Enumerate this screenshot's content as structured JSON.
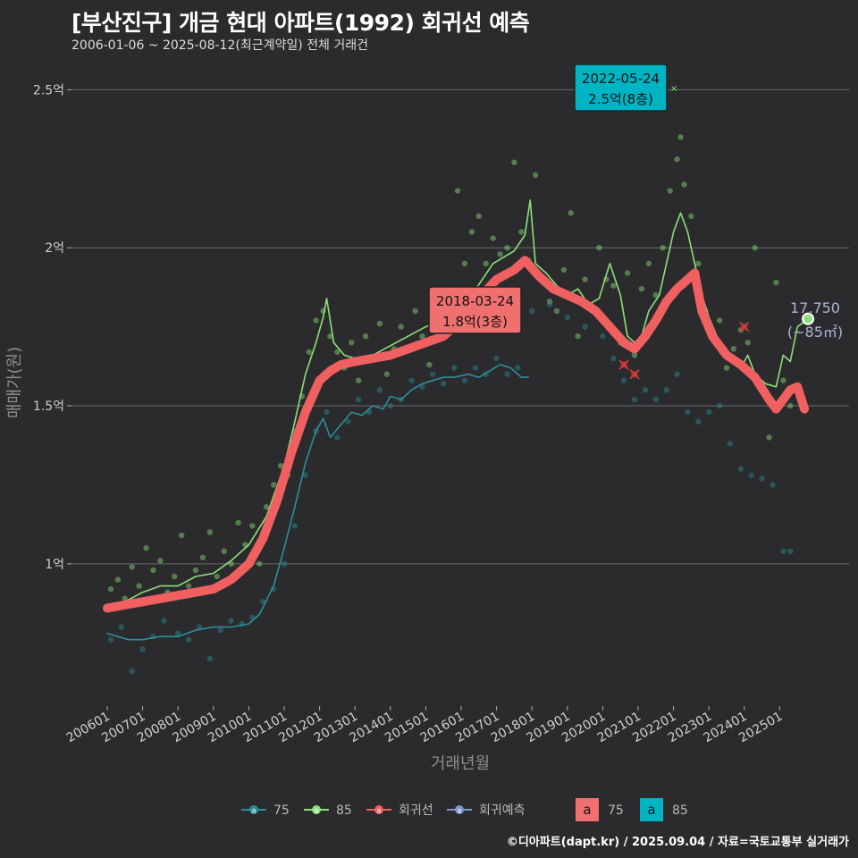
{
  "title": "[부산진구] 개금 현대 아파트(1992) 회귀선 예측",
  "subtitle": "2006-01-06 ~ 2025-08-12(최근계약일) 전체 거래건",
  "caption": "©디아파트(dapt.kr) / 2025.09.04 / 자료=국토교통부 실거래가",
  "colors": {
    "background": "#2b2b2d",
    "series_75": "#2a8f98",
    "series_85": "#8ce07a",
    "regression": "#f06060",
    "forecast": "#7f93c7",
    "label_75_fill": "#f07070",
    "label_85_fill": "#00b4c4"
  },
  "chart_data": {
    "type": "line",
    "xlabel": "거래년월",
    "ylabel": "매매가(원)",
    "x_range": [
      2006.0,
      2025.95
    ],
    "ylim": [
      0.55,
      2.6
    ],
    "y_ticks": [
      1.0,
      1.5,
      2.0,
      2.5
    ],
    "y_tick_labels": [
      "1억",
      "1.5억",
      "2억",
      "2.5억"
    ],
    "x_tick_labels": [
      "200601",
      "200701",
      "200801",
      "200901",
      "201001",
      "201101",
      "201201",
      "201301",
      "201401",
      "201501",
      "201601",
      "201701",
      "201801",
      "201901",
      "202001",
      "202101",
      "202201",
      "202301",
      "202401",
      "202501"
    ],
    "series": [
      {
        "name": "75",
        "points": [
          [
            2006.0,
            0.78
          ],
          [
            2006.3,
            0.77
          ],
          [
            2006.6,
            0.76
          ],
          [
            2007.0,
            0.76
          ],
          [
            2007.5,
            0.77
          ],
          [
            2008.0,
            0.77
          ],
          [
            2008.5,
            0.79
          ],
          [
            2009.0,
            0.8
          ],
          [
            2009.5,
            0.8
          ],
          [
            2010.0,
            0.81
          ],
          [
            2010.3,
            0.84
          ],
          [
            2010.7,
            0.93
          ],
          [
            2011.0,
            1.05
          ],
          [
            2011.3,
            1.18
          ],
          [
            2011.6,
            1.32
          ],
          [
            2011.9,
            1.42
          ],
          [
            2012.1,
            1.46
          ],
          [
            2012.3,
            1.4
          ],
          [
            2012.6,
            1.44
          ],
          [
            2012.9,
            1.48
          ],
          [
            2013.2,
            1.47
          ],
          [
            2013.5,
            1.5
          ],
          [
            2013.8,
            1.49
          ],
          [
            2014.0,
            1.53
          ],
          [
            2014.3,
            1.52
          ],
          [
            2014.6,
            1.55
          ],
          [
            2014.9,
            1.57
          ],
          [
            2015.2,
            1.58
          ],
          [
            2015.5,
            1.59
          ],
          [
            2015.8,
            1.59
          ],
          [
            2016.2,
            1.6
          ],
          [
            2016.5,
            1.59
          ],
          [
            2016.8,
            1.61
          ],
          [
            2017.1,
            1.63
          ],
          [
            2017.4,
            1.62
          ],
          [
            2017.7,
            1.59
          ],
          [
            2017.9,
            1.59
          ]
        ]
      },
      {
        "name": "85",
        "points": [
          [
            2006.0,
            0.87
          ],
          [
            2006.5,
            0.88
          ],
          [
            2007.0,
            0.91
          ],
          [
            2007.5,
            0.93
          ],
          [
            2008.0,
            0.93
          ],
          [
            2008.5,
            0.96
          ],
          [
            2009.0,
            0.97
          ],
          [
            2009.5,
            1.01
          ],
          [
            2010.0,
            1.06
          ],
          [
            2010.5,
            1.15
          ],
          [
            2011.0,
            1.31
          ],
          [
            2011.3,
            1.45
          ],
          [
            2011.6,
            1.6
          ],
          [
            2011.9,
            1.7
          ],
          [
            2012.1,
            1.78
          ],
          [
            2012.2,
            1.84
          ],
          [
            2012.4,
            1.7
          ],
          [
            2012.7,
            1.66
          ],
          [
            2013.0,
            1.65
          ],
          [
            2013.5,
            1.66
          ],
          [
            2014.0,
            1.69
          ],
          [
            2014.5,
            1.72
          ],
          [
            2015.0,
            1.75
          ],
          [
            2015.5,
            1.77
          ],
          [
            2016.0,
            1.8
          ],
          [
            2016.3,
            1.85
          ],
          [
            2016.6,
            1.9
          ],
          [
            2016.9,
            1.95
          ],
          [
            2017.2,
            1.97
          ],
          [
            2017.5,
            1.99
          ],
          [
            2017.8,
            2.04
          ],
          [
            2017.95,
            2.15
          ],
          [
            2018.1,
            1.95
          ],
          [
            2018.4,
            1.92
          ],
          [
            2018.7,
            1.88
          ],
          [
            2019.0,
            1.85
          ],
          [
            2019.3,
            1.87
          ],
          [
            2019.6,
            1.82
          ],
          [
            2019.9,
            1.84
          ],
          [
            2020.2,
            1.95
          ],
          [
            2020.5,
            1.85
          ],
          [
            2020.7,
            1.72
          ],
          [
            2020.9,
            1.7
          ],
          [
            2021.1,
            1.72
          ],
          [
            2021.3,
            1.8
          ],
          [
            2021.6,
            1.85
          ],
          [
            2021.8,
            1.95
          ],
          [
            2022.0,
            2.05
          ],
          [
            2022.2,
            2.11
          ],
          [
            2022.4,
            2.05
          ],
          [
            2022.6,
            1.95
          ],
          [
            2022.8,
            1.85
          ],
          [
            2023.0,
            1.78
          ],
          [
            2023.3,
            1.7
          ],
          [
            2023.6,
            1.65
          ],
          [
            2023.9,
            1.62
          ],
          [
            2024.1,
            1.66
          ],
          [
            2024.3,
            1.6
          ],
          [
            2024.6,
            1.57
          ],
          [
            2024.9,
            1.56
          ],
          [
            2025.1,
            1.66
          ],
          [
            2025.3,
            1.64
          ],
          [
            2025.5,
            1.75
          ],
          [
            2025.8,
            1.775
          ]
        ]
      },
      {
        "name": "회귀선",
        "points": [
          [
            2006.0,
            0.86
          ],
          [
            2006.5,
            0.87
          ],
          [
            2007.0,
            0.88
          ],
          [
            2007.5,
            0.89
          ],
          [
            2008.0,
            0.9
          ],
          [
            2008.5,
            0.91
          ],
          [
            2009.0,
            0.92
          ],
          [
            2009.5,
            0.95
          ],
          [
            2010.0,
            1.0
          ],
          [
            2010.4,
            1.08
          ],
          [
            2010.8,
            1.2
          ],
          [
            2011.2,
            1.35
          ],
          [
            2011.6,
            1.48
          ],
          [
            2012.0,
            1.58
          ],
          [
            2012.3,
            1.61
          ],
          [
            2012.6,
            1.63
          ],
          [
            2013.0,
            1.64
          ],
          [
            2013.5,
            1.65
          ],
          [
            2014.0,
            1.66
          ],
          [
            2014.5,
            1.68
          ],
          [
            2015.0,
            1.7
          ],
          [
            2015.5,
            1.72
          ],
          [
            2016.0,
            1.77
          ],
          [
            2016.5,
            1.84
          ],
          [
            2017.0,
            1.9
          ],
          [
            2017.5,
            1.93
          ],
          [
            2017.8,
            1.96
          ],
          [
            2018.2,
            1.91
          ],
          [
            2018.6,
            1.87
          ],
          [
            2019.0,
            1.85
          ],
          [
            2019.4,
            1.83
          ],
          [
            2019.8,
            1.8
          ],
          [
            2020.2,
            1.75
          ],
          [
            2020.6,
            1.7
          ],
          [
            2020.9,
            1.68
          ],
          [
            2021.2,
            1.72
          ],
          [
            2021.5,
            1.77
          ],
          [
            2021.8,
            1.83
          ],
          [
            2022.1,
            1.87
          ],
          [
            2022.4,
            1.9
          ],
          [
            2022.6,
            1.92
          ],
          [
            2022.8,
            1.8
          ],
          [
            2023.1,
            1.72
          ],
          [
            2023.5,
            1.66
          ],
          [
            2023.9,
            1.63
          ],
          [
            2024.3,
            1.59
          ],
          [
            2024.7,
            1.52
          ],
          [
            2024.9,
            1.49
          ],
          [
            2025.1,
            1.52
          ],
          [
            2025.3,
            1.55
          ],
          [
            2025.5,
            1.56
          ],
          [
            2025.7,
            1.49
          ]
        ]
      }
    ],
    "scatter_85": [
      [
        2006.1,
        0.92
      ],
      [
        2006.3,
        0.95
      ],
      [
        2006.5,
        0.89
      ],
      [
        2006.7,
        0.99
      ],
      [
        2006.9,
        0.93
      ],
      [
        2007.1,
        1.05
      ],
      [
        2007.3,
        0.98
      ],
      [
        2007.5,
        1.01
      ],
      [
        2007.7,
        0.91
      ],
      [
        2007.9,
        0.96
      ],
      [
        2008.1,
        1.09
      ],
      [
        2008.3,
        0.93
      ],
      [
        2008.5,
        0.98
      ],
      [
        2008.7,
        1.02
      ],
      [
        2008.9,
        1.1
      ],
      [
        2009.1,
        0.96
      ],
      [
        2009.3,
        1.04
      ],
      [
        2009.5,
        1.0
      ],
      [
        2009.7,
        1.13
      ],
      [
        2009.9,
        1.06
      ],
      [
        2010.1,
        1.12
      ],
      [
        2010.3,
        1.0
      ],
      [
        2010.5,
        1.18
      ],
      [
        2010.7,
        1.25
      ],
      [
        2010.9,
        1.31
      ],
      [
        2011.1,
        1.28
      ],
      [
        2011.3,
        1.42
      ],
      [
        2011.5,
        1.53
      ],
      [
        2011.7,
        1.67
      ],
      [
        2011.9,
        1.77
      ],
      [
        2012.1,
        1.8
      ],
      [
        2012.3,
        1.72
      ],
      [
        2012.5,
        1.67
      ],
      [
        2012.7,
        1.62
      ],
      [
        2012.9,
        1.7
      ],
      [
        2013.1,
        1.58
      ],
      [
        2013.3,
        1.72
      ],
      [
        2013.5,
        1.65
      ],
      [
        2013.7,
        1.76
      ],
      [
        2013.9,
        1.6
      ],
      [
        2014.1,
        1.68
      ],
      [
        2014.3,
        1.75
      ],
      [
        2014.5,
        1.68
      ],
      [
        2014.7,
        1.8
      ],
      [
        2014.9,
        1.72
      ],
      [
        2015.1,
        1.63
      ],
      [
        2015.3,
        1.78
      ],
      [
        2015.5,
        1.74
      ],
      [
        2015.7,
        1.85
      ],
      [
        2015.9,
        2.18
      ],
      [
        2016.1,
        1.95
      ],
      [
        2016.3,
        2.05
      ],
      [
        2016.5,
        2.1
      ],
      [
        2016.7,
        1.95
      ],
      [
        2016.9,
        2.03
      ],
      [
        2017.1,
        1.98
      ],
      [
        2017.3,
        2.0
      ],
      [
        2017.5,
        2.27
      ],
      [
        2017.7,
        2.05
      ],
      [
        2017.9,
        1.96
      ],
      [
        2018.1,
        2.23
      ],
      [
        2018.3,
        1.9
      ],
      [
        2018.5,
        1.83
      ],
      [
        2018.7,
        1.8
      ],
      [
        2018.9,
        1.93
      ],
      [
        2019.1,
        2.11
      ],
      [
        2019.3,
        1.72
      ],
      [
        2019.5,
        1.9
      ],
      [
        2019.7,
        1.8
      ],
      [
        2019.9,
        2.0
      ],
      [
        2020.1,
        1.9
      ],
      [
        2020.3,
        1.88
      ],
      [
        2020.5,
        1.7
      ],
      [
        2020.7,
        1.92
      ],
      [
        2020.9,
        1.66
      ],
      [
        2021.1,
        1.87
      ],
      [
        2021.3,
        1.95
      ],
      [
        2021.5,
        1.85
      ],
      [
        2021.7,
        2.0
      ],
      [
        2021.9,
        2.18
      ],
      [
        2022.1,
        2.28
      ],
      [
        2022.2,
        2.35
      ],
      [
        2022.3,
        2.2
      ],
      [
        2022.5,
        2.1
      ],
      [
        2022.7,
        1.95
      ],
      [
        2022.9,
        1.8
      ],
      [
        2023.1,
        1.72
      ],
      [
        2023.3,
        1.77
      ],
      [
        2023.5,
        1.62
      ],
      [
        2023.7,
        1.68
      ],
      [
        2023.9,
        1.74
      ],
      [
        2024.1,
        1.7
      ],
      [
        2024.3,
        2.0
      ],
      [
        2024.5,
        1.55
      ],
      [
        2024.7,
        1.4
      ],
      [
        2024.9,
        1.89
      ],
      [
        2025.1,
        1.58
      ],
      [
        2025.3,
        1.5
      ]
    ],
    "scatter_75": [
      [
        2006.1,
        0.76
      ],
      [
        2006.4,
        0.8
      ],
      [
        2006.7,
        0.66
      ],
      [
        2007.0,
        0.73
      ],
      [
        2007.3,
        0.77
      ],
      [
        2007.6,
        0.82
      ],
      [
        2008.0,
        0.78
      ],
      [
        2008.3,
        0.76
      ],
      [
        2008.6,
        0.8
      ],
      [
        2008.9,
        0.7
      ],
      [
        2009.2,
        0.79
      ],
      [
        2009.5,
        0.82
      ],
      [
        2009.8,
        0.81
      ],
      [
        2010.1,
        0.83
      ],
      [
        2010.4,
        0.88
      ],
      [
        2010.7,
        0.92
      ],
      [
        2011.0,
        1.0
      ],
      [
        2011.3,
        1.12
      ],
      [
        2011.6,
        1.28
      ],
      [
        2011.9,
        1.42
      ],
      [
        2012.2,
        1.48
      ],
      [
        2012.5,
        1.4
      ],
      [
        2012.8,
        1.45
      ],
      [
        2013.1,
        1.52
      ],
      [
        2013.4,
        1.48
      ],
      [
        2013.7,
        1.55
      ],
      [
        2014.0,
        1.5
      ],
      [
        2014.3,
        1.52
      ],
      [
        2014.6,
        1.58
      ],
      [
        2014.9,
        1.56
      ],
      [
        2015.2,
        1.6
      ],
      [
        2015.5,
        1.57
      ],
      [
        2015.8,
        1.62
      ],
      [
        2016.1,
        1.58
      ],
      [
        2016.4,
        1.62
      ],
      [
        2016.7,
        1.6
      ],
      [
        2017.0,
        1.65
      ],
      [
        2017.3,
        1.6
      ],
      [
        2017.6,
        1.62
      ],
      [
        2018.0,
        1.8
      ],
      [
        2018.5,
        1.82
      ],
      [
        2019.0,
        1.78
      ],
      [
        2019.5,
        1.75
      ],
      [
        2020.0,
        1.72
      ],
      [
        2020.3,
        1.65
      ],
      [
        2020.6,
        1.58
      ],
      [
        2020.9,
        1.52
      ],
      [
        2021.2,
        1.55
      ],
      [
        2021.5,
        1.52
      ],
      [
        2021.8,
        1.55
      ],
      [
        2022.1,
        1.6
      ],
      [
        2022.4,
        1.48
      ],
      [
        2022.7,
        1.45
      ],
      [
        2023.0,
        1.48
      ],
      [
        2023.3,
        1.5
      ],
      [
        2023.6,
        1.38
      ],
      [
        2023.9,
        1.3
      ],
      [
        2024.2,
        1.28
      ],
      [
        2024.5,
        1.27
      ],
      [
        2024.8,
        1.25
      ],
      [
        2025.1,
        1.04
      ],
      [
        2025.3,
        1.04
      ]
    ],
    "outliers": [
      [
        2020.6,
        1.63
      ],
      [
        2020.9,
        1.6
      ],
      [
        2024.0,
        1.75
      ]
    ],
    "callouts": [
      {
        "date": "2018-03-24",
        "text": "1.8억(3층)",
        "series": "75"
      },
      {
        "date": "2022-05-24",
        "text": "2.5억(8층)",
        "series": "85"
      }
    ],
    "end_annotation": {
      "value": "17,750",
      "area": "(~85㎡)"
    },
    "legend": [
      {
        "label": "75",
        "kind": "line",
        "color": "#2a8f98"
      },
      {
        "label": "85",
        "kind": "line",
        "color": "#8ce07a"
      },
      {
        "label": "회귀선",
        "kind": "line",
        "color": "#f06060"
      },
      {
        "label": "회귀예측",
        "kind": "line",
        "color": "#7f93c7"
      },
      {
        "label": "75",
        "kind": "box",
        "box_text": "a",
        "color": "#f07070"
      },
      {
        "label": "85",
        "kind": "box",
        "box_text": "a",
        "color": "#00b4c4"
      }
    ]
  }
}
